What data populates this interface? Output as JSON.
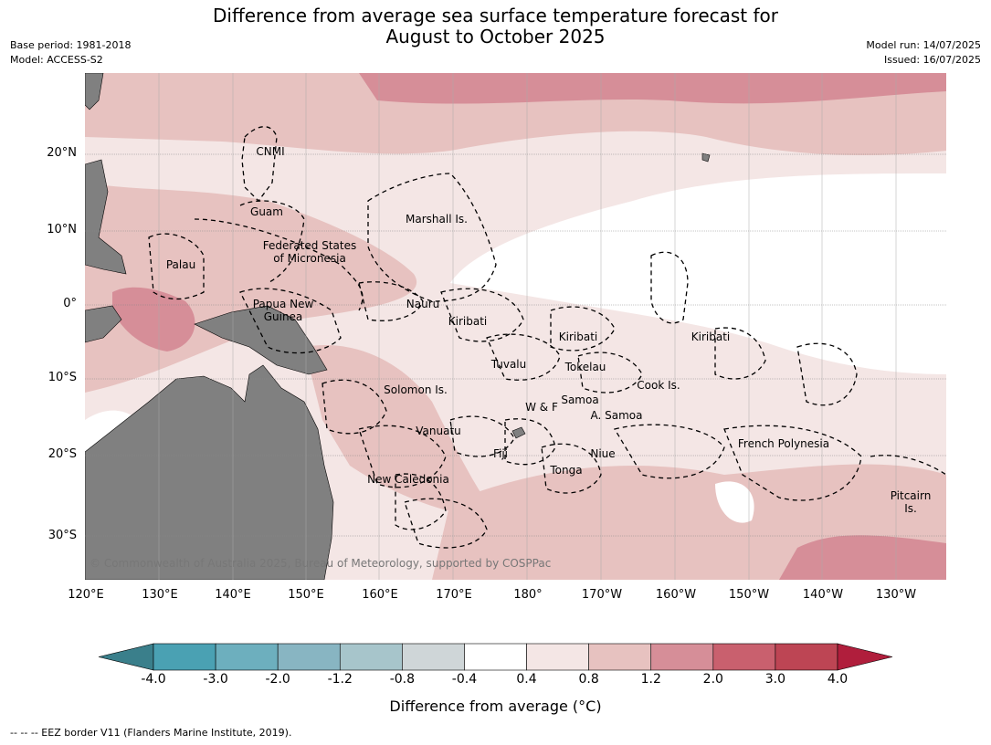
{
  "title_line1": "Difference from average sea surface temperature forecast for",
  "title_line2": "August to October 2025",
  "meta_left": [
    "Base period: 1981-2018",
    "Model: ACCESS-S2"
  ],
  "meta_right": [
    "Model run: 14/07/2025",
    "Issued: 16/07/2025"
  ],
  "lat_labels": [
    "20°N",
    "10°N",
    "0°",
    "10°S",
    "20°S",
    "30°S"
  ],
  "lon_labels": [
    "120°E",
    "130°E",
    "140°E",
    "150°E",
    "160°E",
    "170°E",
    "180°",
    "170°W",
    "160°W",
    "150°W",
    "140°W",
    "130°W"
  ],
  "places": [
    "CNMI",
    "Guam",
    "Marshall Is.",
    "Federated States",
    "of Micronesia",
    "Palau",
    "Papua New",
    "Guinea",
    "Nauru",
    "Kiribati",
    "Kiribati",
    "Kiribati",
    "Tuvalu",
    "Tokelau",
    "Solomon Is.",
    "Samoa",
    "W & F",
    "A. Samoa",
    "Cook Is.",
    "Vanuatu",
    "Fiji",
    "Niue",
    "French Polynesia",
    "Tonga",
    "New Caledonia",
    "Pitcairn",
    "Is."
  ],
  "copyright": "© Commonwealth of Australia 2025, Bureau of Meteorology, supported by COSPPac",
  "colorbar": {
    "ticks": [
      "-4.0",
      "-3.0",
      "-2.0",
      "-1.2",
      "-0.8",
      "-0.4",
      "0.4",
      "0.8",
      "1.2",
      "2.0",
      "3.0",
      "4.0"
    ],
    "colors": [
      "#3a7f8b",
      "#4aa1b3",
      "#6dafbe",
      "#88b5c2",
      "#a7c5cb",
      "#cfd6d8",
      "#ffffff",
      "#f4e6e5",
      "#e7c2c0",
      "#d68e98",
      "#c9606e",
      "#bd4554",
      "#b01e3c"
    ],
    "label": "Difference from average (°C)"
  },
  "footer": "--  --  -- EEZ border V11 (Flanders Marine Institute, 2019)."
}
